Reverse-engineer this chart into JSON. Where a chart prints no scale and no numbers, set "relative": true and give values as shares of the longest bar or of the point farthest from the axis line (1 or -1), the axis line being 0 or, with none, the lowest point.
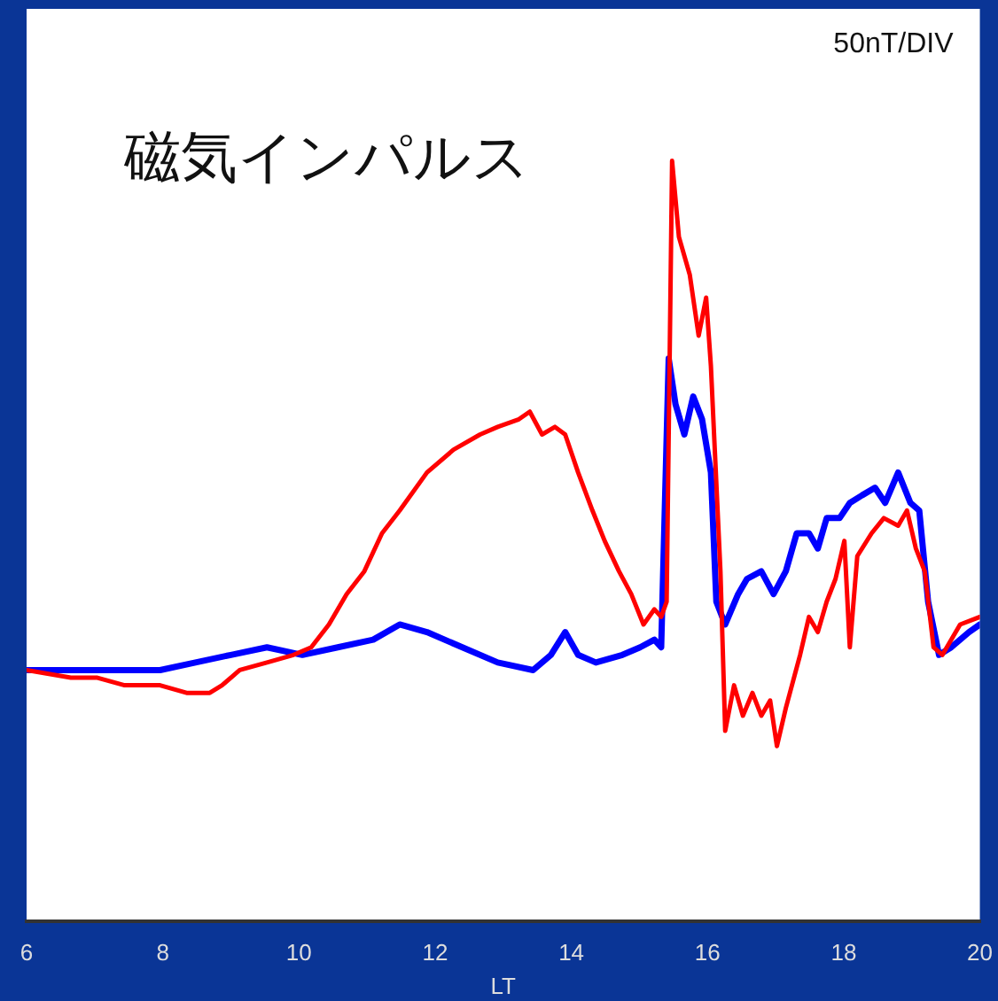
{
  "chart_data": {
    "type": "line",
    "relative": true,
    "xlabel": "LT",
    "xlim": [
      6,
      20
    ],
    "xticks": [
      6,
      8,
      10,
      12,
      14,
      16,
      18,
      20
    ],
    "grid": false,
    "legend": false,
    "marker": "none",
    "line_style": "solid",
    "annotations": [
      "磁気インパルス",
      "50nT/DIV"
    ],
    "series": [
      {
        "color": "#ff0000",
        "x": [
          6.0,
          6.65,
          7.04,
          7.44,
          7.96,
          8.35,
          8.69,
          8.87,
          9.13,
          9.53,
          9.92,
          10.18,
          10.44,
          10.7,
          10.96,
          11.22,
          11.48,
          11.88,
          12.27,
          12.66,
          12.92,
          13.23,
          13.39,
          13.57,
          13.76,
          13.91,
          14.1,
          14.31,
          14.49,
          14.7,
          14.88,
          15.06,
          15.22,
          15.32,
          15.4,
          15.48,
          15.58,
          15.74,
          15.87,
          15.98,
          16.05,
          16.19,
          16.26,
          16.39,
          16.52,
          16.66,
          16.79,
          16.92,
          17.02,
          17.15,
          17.36,
          17.49,
          17.62,
          17.75,
          17.88,
          18.01,
          18.09,
          18.2,
          18.41,
          18.59,
          18.8,
          18.93,
          19.06,
          19.19,
          19.32,
          19.45,
          19.71,
          20.0
        ],
        "values": [
          0.33,
          0.32,
          0.32,
          0.31,
          0.31,
          0.3,
          0.3,
          0.31,
          0.33,
          0.34,
          0.35,
          0.36,
          0.39,
          0.43,
          0.46,
          0.51,
          0.54,
          0.59,
          0.62,
          0.64,
          0.65,
          0.66,
          0.67,
          0.64,
          0.65,
          0.64,
          0.59,
          0.54,
          0.5,
          0.46,
          0.43,
          0.39,
          0.41,
          0.4,
          0.42,
          1.0,
          0.9,
          0.85,
          0.77,
          0.82,
          0.73,
          0.46,
          0.25,
          0.31,
          0.27,
          0.3,
          0.27,
          0.29,
          0.23,
          0.28,
          0.35,
          0.4,
          0.38,
          0.42,
          0.45,
          0.5,
          0.36,
          0.48,
          0.51,
          0.53,
          0.52,
          0.54,
          0.49,
          0.46,
          0.36,
          0.35,
          0.39,
          0.4
        ]
      },
      {
        "color": "#0000ff",
        "x": [
          6.0,
          6.65,
          7.04,
          7.44,
          7.96,
          8.48,
          9.0,
          9.53,
          10.05,
          10.57,
          11.09,
          11.48,
          11.88,
          12.4,
          12.92,
          13.44,
          13.7,
          13.91,
          14.1,
          14.36,
          14.75,
          15.01,
          15.22,
          15.32,
          15.43,
          15.53,
          15.66,
          15.79,
          15.92,
          16.05,
          16.13,
          16.26,
          16.45,
          16.58,
          16.79,
          16.97,
          17.15,
          17.31,
          17.49,
          17.62,
          17.75,
          17.94,
          18.09,
          18.27,
          18.46,
          18.61,
          18.8,
          18.98,
          19.11,
          19.24,
          19.4,
          19.58,
          19.84,
          20.0
        ],
        "values": [
          0.33,
          0.33,
          0.33,
          0.33,
          0.33,
          0.34,
          0.35,
          0.36,
          0.35,
          0.36,
          0.37,
          0.39,
          0.38,
          0.36,
          0.34,
          0.33,
          0.35,
          0.38,
          0.35,
          0.34,
          0.35,
          0.36,
          0.37,
          0.36,
          0.74,
          0.68,
          0.64,
          0.69,
          0.66,
          0.59,
          0.42,
          0.39,
          0.43,
          0.45,
          0.46,
          0.43,
          0.46,
          0.51,
          0.51,
          0.49,
          0.53,
          0.53,
          0.55,
          0.56,
          0.57,
          0.55,
          0.59,
          0.55,
          0.54,
          0.42,
          0.35,
          0.36,
          0.38,
          0.39
        ]
      }
    ]
  }
}
